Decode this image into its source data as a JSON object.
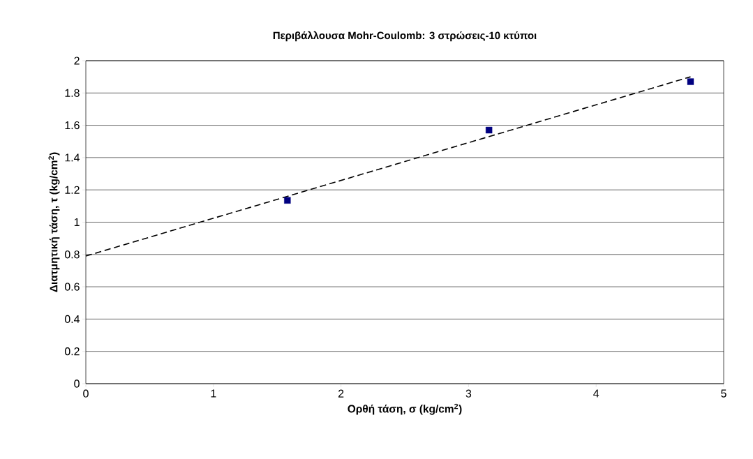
{
  "chart_data": {
    "type": "scatter",
    "title": "Περιβάλλουσα Mohr-Coulomb: 3 στρώσεις-10 κτύποι",
    "xlabel": "Ορθή τάση, σ (kg/cm$^{2}$)",
    "ylabel": "Διατμητική τάση, τ (kg/cm$^{2}$)",
    "xlim": [
      0,
      5
    ],
    "ylim": [
      0,
      2
    ],
    "xticks": [
      0,
      1,
      2,
      3,
      4,
      5
    ],
    "yticks": [
      0,
      0.2,
      0.4,
      0.6,
      0.8,
      1,
      1.2,
      1.4,
      1.6,
      1.8,
      2
    ],
    "grid": "y",
    "series": [
      {
        "type": "scatter",
        "color": "#000080",
        "marker": "square",
        "x": [
          1.58,
          3.16,
          4.74
        ],
        "values": [
          1.135,
          1.57,
          1.87
        ]
      },
      {
        "type": "line",
        "color": "#000000",
        "marker": "none",
        "line_style": "dashed",
        "x": [
          0,
          4.74
        ],
        "values": [
          0.79,
          1.9
        ]
      }
    ]
  }
}
